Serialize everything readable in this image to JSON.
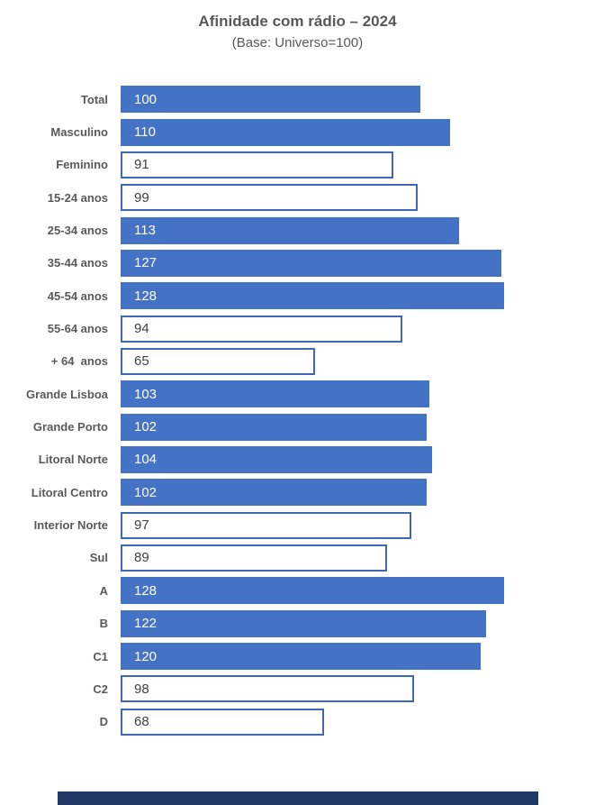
{
  "title": "Afinidade com rádio – 2024",
  "subtitle": "(Base: Universo=100)",
  "chart_data": {
    "type": "bar",
    "orientation": "horizontal",
    "title": "Afinidade com rádio – 2024",
    "subtitle": "(Base: Universo=100)",
    "categories": [
      "Total",
      "Masculino",
      "Feminino",
      "15-24 anos",
      "25-34 anos",
      "35-44 anos",
      "45-54 anos",
      "55-64 anos",
      "+ 64  anos",
      "Grande Lisboa",
      "Grande Porto",
      "Litoral Norte",
      "Litoral Centro",
      "Interior Norte",
      "Sul",
      "A",
      "B",
      "C1",
      "C2",
      "D"
    ],
    "values": [
      100,
      110,
      91,
      99,
      113,
      127,
      128,
      94,
      65,
      103,
      102,
      104,
      102,
      97,
      89,
      128,
      122,
      120,
      98,
      68
    ],
    "xlim": [
      0,
      140
    ],
    "axes_visible": false,
    "grid": false,
    "legend": false,
    "data_labels": "inside-left",
    "bar_style_rule": "value >= 100: solid blue fill with white label; value < 100: white fill with blue outline and gray label",
    "colors": {
      "bar_fill": "#4472C4",
      "bar_outline": "#3E68B5",
      "value_label_on_fill": "#FFFFFF",
      "value_label_on_white": "#404040",
      "category_label": "#595959",
      "title": "#595959",
      "accent_strip": "#1F3864"
    }
  }
}
